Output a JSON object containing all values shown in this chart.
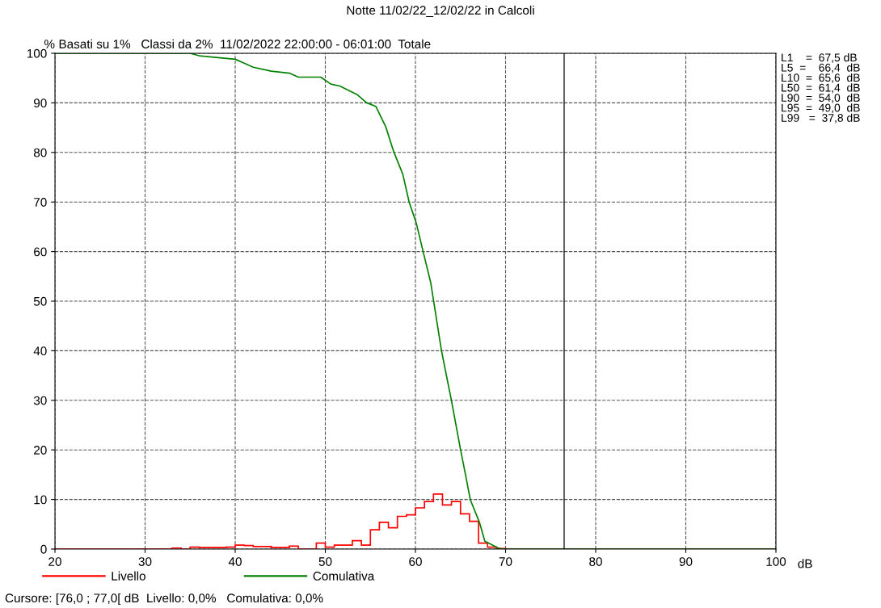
{
  "chart_data": {
    "type": "line",
    "title": "Notte 11/02/22_12/02/22 in Calcoli",
    "subtitle": "Basati su 1%   Classi da 2%  11/02/2022 22:00:00 - 06:01:00  Totale",
    "xlabel": "dB",
    "ylabel": "%",
    "series": [
      {
        "name": "Livello",
        "type": "histogram",
        "color": "#ff0000",
        "bins": [
          20,
          33,
          34,
          35,
          36,
          37,
          38,
          39,
          40,
          41,
          42,
          43,
          44,
          45,
          46,
          47,
          48,
          49,
          50,
          51,
          52,
          53,
          54,
          55,
          56,
          57,
          58,
          59,
          60,
          61,
          62,
          63,
          64,
          65,
          66,
          67,
          68,
          69,
          70,
          100
        ],
        "values": [
          0,
          0.2,
          0,
          0.4,
          0.3,
          0.3,
          0.3,
          0.4,
          0.8,
          0.7,
          0.5,
          0.5,
          0.3,
          0.3,
          0.6,
          0,
          0,
          1.2,
          0.4,
          0.8,
          0.8,
          1.7,
          0.8,
          3.9,
          5.4,
          4.3,
          6.6,
          6.9,
          8.3,
          9.6,
          11.1,
          8.9,
          9.6,
          7.1,
          5.6,
          1.2,
          0.4,
          0.1,
          0
        ]
      },
      {
        "name": "Comulativa",
        "type": "line",
        "color": "#008000",
        "x": [
          20,
          35,
          36,
          40,
          41,
          42,
          44,
          46,
          47,
          49.5,
          50.6,
          51.6,
          53.5,
          54.6,
          55.6,
          56.7,
          57.6,
          58.6,
          59.3,
          60.1,
          60.8,
          61.7,
          62.9,
          64.0,
          65.0,
          65.6,
          65.9,
          66.1,
          67.1,
          67.7,
          69.1,
          69.5,
          100
        ],
        "values": [
          100,
          100,
          99.5,
          98.8,
          98.0,
          97.2,
          96.4,
          96.0,
          95.2,
          95.2,
          93.8,
          93.4,
          91.7,
          90.0,
          89.3,
          85.2,
          80.1,
          75.6,
          70.0,
          65.7,
          60.4,
          53.7,
          39.9,
          29.9,
          20.1,
          14.6,
          11.7,
          9.9,
          5.4,
          1.6,
          0.3,
          0,
          0
        ]
      }
    ],
    "xlim": [
      20,
      100
    ],
    "xticks": [
      20,
      30,
      40,
      50,
      60,
      70,
      80,
      90,
      100
    ],
    "ylim": [
      0,
      100
    ],
    "yticks": [
      0,
      10,
      20,
      30,
      40,
      50,
      60,
      70,
      80,
      90,
      100
    ],
    "ref_lines": [
      {
        "axis": "x",
        "value": 76.5,
        "color": "#000000",
        "line_style": "solid"
      }
    ],
    "grid": true,
    "legend": "bottom",
    "annotations": [
      "L1    =  67,5 dB\nL5  =    66,4  dB\nL10  =  65,6  dB\nL50  =  61,4  dB\nL90  =  54,0  dB\nL95  =  49,0  dB\nL99   =  37,8 dB",
      "Cursore: [76,0 ; 77,0[ dB  Livello: 0,0%   Comulativa: 0,0%"
    ]
  }
}
